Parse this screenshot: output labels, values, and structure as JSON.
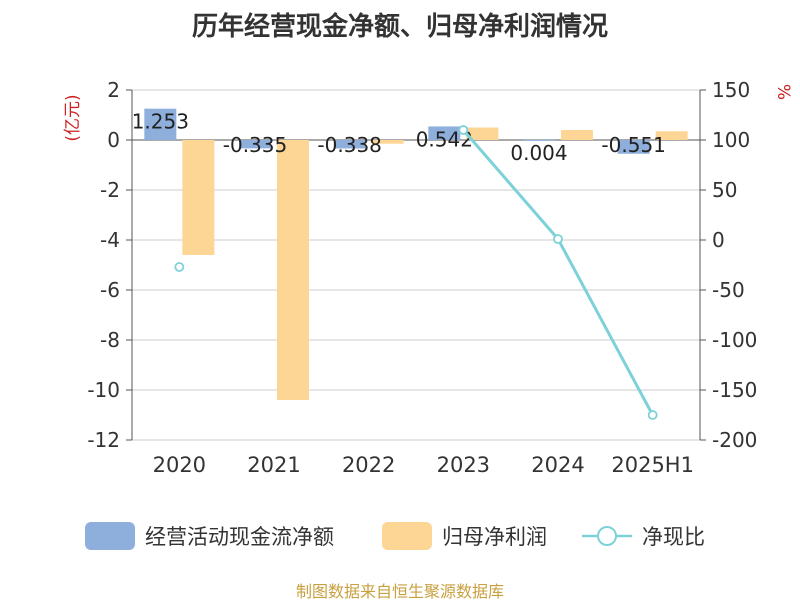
{
  "title": "历年经营现金净额、归母净利润情况",
  "source_note": "制图数据来自恒生聚源数据库",
  "chart_data": {
    "type": "bar",
    "categories": [
      "2020",
      "2021",
      "2022",
      "2023",
      "2024",
      "2025H1"
    ],
    "left_axis": {
      "label": "(亿元)",
      "range": [
        -12,
        2
      ],
      "ticks": [
        2,
        0,
        -2,
        -4,
        -6,
        -8,
        -10,
        -12
      ]
    },
    "right_axis": {
      "label": "%",
      "range": [
        -200,
        150
      ],
      "ticks": [
        150,
        100,
        50,
        0,
        -50,
        -100,
        -150,
        -200
      ]
    },
    "series": [
      {
        "name": "经营活动现金流净额",
        "kind": "bar",
        "axis": "left",
        "color": "#8eaedc",
        "values": [
          1.253,
          -0.335,
          -0.338,
          0.542,
          0.004,
          -0.551
        ],
        "labels": [
          "1.253",
          "-0.335",
          "-0.338",
          "0.542",
          "0.004",
          "-0.551"
        ]
      },
      {
        "name": "归母净利润",
        "kind": "bar",
        "axis": "left",
        "color": "#fdd595",
        "values": [
          -4.6,
          -10.4,
          -0.15,
          0.5,
          0.4,
          0.35
        ]
      },
      {
        "name": "净现比",
        "kind": "line",
        "axis": "right",
        "color": "#7dd1d8",
        "values": [
          -27,
          null,
          null,
          110,
          1,
          -175
        ]
      }
    ],
    "legend_position": "bottom",
    "grid": true
  }
}
